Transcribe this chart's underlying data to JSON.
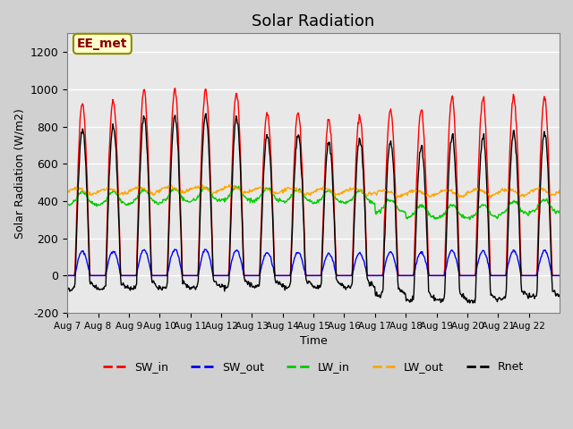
{
  "title": "Solar Radiation",
  "ylabel": "Solar Radiation (W/m2)",
  "xlabel": "Time",
  "ylim": [
    -200,
    1300
  ],
  "yticks": [
    -200,
    0,
    200,
    400,
    600,
    800,
    1000,
    1200
  ],
  "n_days": 16,
  "xtick_labels": [
    "Aug 7",
    "Aug 8",
    "Aug 9",
    "Aug 10",
    "Aug 11",
    "Aug 12",
    "Aug 13",
    "Aug 14",
    "Aug 15",
    "Aug 16",
    "Aug 17",
    "Aug 18",
    "Aug 19",
    "Aug 20",
    "Aug 21",
    "Aug 22"
  ],
  "colors": {
    "SW_in": "#ff0000",
    "SW_out": "#0000ff",
    "LW_in": "#00cc00",
    "LW_out": "#ffa500",
    "Rnet": "#000000"
  },
  "annotation_text": "EE_met",
  "annotation_color": "#8b0000",
  "annotation_bg": "#ffffcc",
  "figsize": [
    6.4,
    4.8
  ],
  "dpi": 100,
  "sw_peaks": [
    930,
    940,
    1000,
    1000,
    1000,
    980,
    880,
    880,
    840,
    860,
    890,
    890,
    960,
    950,
    960,
    960
  ],
  "lw_in_base": [
    400,
    400,
    410,
    415,
    420,
    425,
    420,
    415,
    410,
    410,
    360,
    330,
    330,
    330,
    350,
    360
  ],
  "lw_out_base": [
    450,
    450,
    455,
    460,
    460,
    460,
    455,
    450,
    450,
    450,
    440,
    440,
    440,
    445,
    445,
    450
  ]
}
